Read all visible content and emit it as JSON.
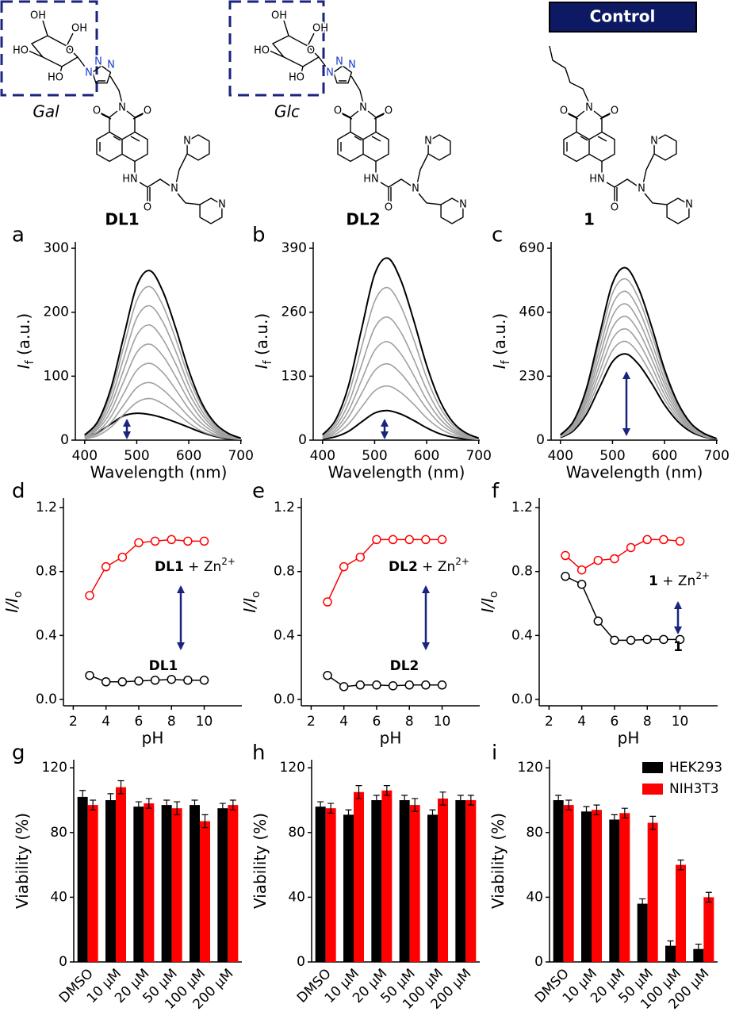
{
  "control_label": "Control",
  "structures": [
    {
      "name": "DL1",
      "tag": "Gal",
      "atoms": [
        "OH",
        "OH",
        "HO",
        "O",
        "HO",
        "N",
        "N",
        "N",
        "O",
        "N",
        "O",
        "HN",
        "O",
        "N",
        "N",
        "N"
      ]
    },
    {
      "name": "DL2",
      "tag": "Glc",
      "atoms": [
        "OH",
        "OH",
        "HO",
        "O",
        "HO",
        "N",
        "N",
        "N",
        "O",
        "N",
        "O",
        "HN",
        "O",
        "N",
        "N",
        "N"
      ]
    },
    {
      "name": "1",
      "atoms": [
        "O",
        "N",
        "O",
        "HN",
        "O",
        "N",
        "N",
        "N"
      ]
    }
  ],
  "chart_data": [
    {
      "type": "line",
      "label": "a",
      "xlabel": "Wavelength (nm)",
      "ylabel": {
        "main": "I",
        "sub": "f",
        "rest": " (a.u.)"
      },
      "x": [
        400,
        425,
        450,
        475,
        500,
        525,
        550,
        575,
        600,
        625,
        650,
        675,
        700
      ],
      "xlim": [
        382,
        702
      ],
      "xticks": [
        400,
        500,
        600,
        700
      ],
      "ylim": [
        0,
        310
      ],
      "yticks": [
        0,
        100,
        200,
        300
      ],
      "series": [
        {
          "color": "#000000",
          "values": [
            5,
            12,
            25,
            38,
            42,
            40,
            35,
            28,
            20,
            12,
            6,
            2,
            1
          ]
        },
        {
          "color": "#a0a0a0",
          "values": [
            2,
            7,
            20,
            40,
            59,
            65,
            57,
            43,
            27,
            14,
            7,
            3,
            1
          ]
        },
        {
          "color": "#a0a0a0",
          "values": [
            3,
            10,
            27,
            55,
            82,
            90,
            79,
            59,
            37,
            20,
            9,
            4,
            1
          ]
        },
        {
          "color": "#a0a0a0",
          "values": [
            4,
            13,
            36,
            73,
            109,
            120,
            106,
            79,
            49,
            26,
            12,
            5,
            1
          ]
        },
        {
          "color": "#a0a0a0",
          "values": [
            5,
            17,
            45,
            92,
            137,
            150,
            132,
            99,
            62,
            33,
            15,
            6,
            2
          ]
        },
        {
          "color": "#a0a0a0",
          "values": [
            5,
            20,
            54,
            110,
            164,
            180,
            158,
            119,
            74,
            40,
            18,
            7,
            2
          ]
        },
        {
          "color": "#a0a0a0",
          "values": [
            6,
            23,
            63,
            128,
            191,
            210,
            185,
            139,
            86,
            46,
            21,
            8,
            2
          ]
        },
        {
          "color": "#a0a0a0",
          "values": [
            7,
            26,
            72,
            146,
            218,
            240,
            211,
            158,
            98,
            53,
            24,
            10,
            2
          ]
        },
        {
          "color": "#000000",
          "values": [
            8,
            29,
            80,
            162,
            241,
            265,
            233,
            175,
            109,
            58,
            27,
            11,
            3
          ]
        }
      ]
    },
    {
      "type": "line",
      "label": "b",
      "xlabel": "Wavelength (nm)",
      "ylabel": {
        "main": "I",
        "sub": "f",
        "rest": " (a.u.)"
      },
      "x": [
        400,
        425,
        450,
        475,
        500,
        525,
        550,
        575,
        600,
        625,
        650,
        675,
        700
      ],
      "xlim": [
        382,
        702
      ],
      "xticks": [
        400,
        500,
        600,
        700
      ],
      "ylim": [
        0,
        403
      ],
      "yticks": [
        0,
        130,
        260,
        390
      ],
      "series": [
        {
          "color": "#000000",
          "values": [
            2,
            7,
            18,
            37,
            55,
            60,
            53,
            40,
            25,
            13,
            6,
            2,
            1
          ]
        },
        {
          "color": "#a0a0a0",
          "values": [
            3,
            12,
            33,
            67,
            100,
            110,
            97,
            73,
            45,
            24,
            11,
            4,
            1
          ]
        },
        {
          "color": "#a0a0a0",
          "values": [
            5,
            17,
            47,
            95,
            141,
            155,
            136,
            102,
            64,
            34,
            16,
            6,
            2
          ]
        },
        {
          "color": "#a0a0a0",
          "values": [
            6,
            22,
            60,
            122,
            182,
            200,
            176,
            132,
            82,
            44,
            20,
            8,
            2
          ]
        },
        {
          "color": "#a0a0a0",
          "values": [
            8,
            28,
            75,
            153,
            228,
            250,
            220,
            165,
            103,
            55,
            25,
            10,
            3
          ]
        },
        {
          "color": "#a0a0a0",
          "values": [
            9,
            34,
            93,
            189,
            282,
            310,
            273,
            205,
            127,
            68,
            31,
            12,
            3
          ]
        },
        {
          "color": "#000000",
          "values": [
            11,
            41,
            111,
            226,
            337,
            370,
            326,
            244,
            152,
            81,
            37,
            15,
            4
          ]
        }
      ]
    },
    {
      "type": "line",
      "label": "c",
      "xlabel": "Wavelength (nm)",
      "ylabel": {
        "main": "I",
        "sub": "f",
        "rest": " (a.u.)"
      },
      "x": [
        400,
        425,
        450,
        475,
        500,
        525,
        550,
        575,
        600,
        625,
        650,
        675,
        700
      ],
      "xlim": [
        382,
        702
      ],
      "xticks": [
        400,
        500,
        600,
        700
      ],
      "ylim": [
        0,
        713
      ],
      "yticks": [
        0,
        230,
        460,
        690
      ],
      "series": [
        {
          "color": "#000000",
          "values": [
            9,
            34,
            93,
            189,
            282,
            310,
            273,
            205,
            127,
            68,
            31,
            12,
            3
          ]
        },
        {
          "color": "#a0a0a0",
          "values": [
            11,
            39,
            107,
            217,
            323,
            355,
            312,
            234,
            146,
            78,
            36,
            14,
            4
          ]
        },
        {
          "color": "#a0a0a0",
          "values": [
            12,
            44,
            120,
            244,
            364,
            400,
            352,
            264,
            164,
            88,
            40,
            16,
            4
          ]
        },
        {
          "color": "#a0a0a0",
          "values": [
            13,
            49,
            134,
            271,
            405,
            445,
            392,
            294,
            182,
            98,
            45,
            18,
            4
          ]
        },
        {
          "color": "#a0a0a0",
          "values": [
            15,
            54,
            147,
            299,
            446,
            490,
            431,
            323,
            201,
            108,
            49,
            20,
            5
          ]
        },
        {
          "color": "#a0a0a0",
          "values": [
            16,
            59,
            161,
            326,
            487,
            535,
            471,
            353,
            219,
            118,
            54,
            21,
            5
          ]
        },
        {
          "color": "#a0a0a0",
          "values": [
            17,
            64,
            174,
            354,
            528,
            580,
            510,
            383,
            238,
            128,
            58,
            23,
            6
          ]
        },
        {
          "color": "#000000",
          "values": [
            19,
            68,
            186,
            378,
            564,
            620,
            546,
            409,
            254,
            136,
            62,
            25,
            6
          ]
        }
      ]
    },
    {
      "type": "line",
      "markers": true,
      "label": "d",
      "xlabel": "pH",
      "ylabel": {
        "main": "I/I",
        "sub": "o"
      },
      "x": [
        3,
        4,
        5,
        6,
        7,
        8,
        9,
        10
      ],
      "xlim": [
        1.4,
        12.3
      ],
      "xticks": [
        2,
        4,
        6,
        8,
        10
      ],
      "ylim": [
        -0.04,
        1.26
      ],
      "yticks": [
        {
          "value": 0,
          "label": "0.0"
        },
        0.4,
        0.8,
        1.2
      ],
      "series": [
        {
          "color": "#ff0000",
          "values": [
            0.65,
            0.83,
            0.89,
            0.98,
            0.99,
            1.0,
            0.99,
            0.99
          ]
        },
        {
          "color": "#000000",
          "values": [
            0.15,
            0.11,
            0.11,
            0.115,
            0.12,
            0.125,
            0.12,
            0.12
          ]
        }
      ],
      "annotations": [
        {
          "bold": "DL1",
          "text": " + Zn",
          "sup": "2+"
        },
        {
          "bold": "DL1"
        }
      ]
    },
    {
      "type": "line",
      "markers": true,
      "label": "e",
      "xlabel": "pH",
      "ylabel": {
        "main": "I/I",
        "sub": "o"
      },
      "x": [
        3,
        4,
        5,
        6,
        7,
        8,
        9,
        10
      ],
      "xlim": [
        1.4,
        12.3
      ],
      "xticks": [
        2,
        4,
        6,
        8,
        10
      ],
      "ylim": [
        -0.04,
        1.26
      ],
      "yticks": [
        {
          "value": 0,
          "label": "0.0"
        },
        0.4,
        0.8,
        1.2
      ],
      "series": [
        {
          "color": "#ff0000",
          "values": [
            0.61,
            0.83,
            0.89,
            1.0,
            1.0,
            1.0,
            1.0,
            1.0
          ]
        },
        {
          "color": "#000000",
          "values": [
            0.15,
            0.08,
            0.09,
            0.09,
            0.085,
            0.09,
            0.09,
            0.09
          ]
        }
      ],
      "annotations": [
        {
          "bold": "DL2",
          "text": " + Zn",
          "sup": "2+"
        },
        {
          "bold": "DL2"
        }
      ]
    },
    {
      "type": "line",
      "markers": true,
      "label": "f",
      "xlabel": "pH",
      "ylabel": {
        "main": "I/I",
        "sub": "o"
      },
      "x": [
        3,
        4,
        5,
        6,
        7,
        8,
        9,
        10
      ],
      "xlim": [
        1.4,
        12.3
      ],
      "xticks": [
        2,
        4,
        6,
        8,
        10
      ],
      "ylim": [
        -0.04,
        1.26
      ],
      "yticks": [
        {
          "value": 0,
          "label": "0.0"
        },
        0.4,
        0.8,
        1.2
      ],
      "series": [
        {
          "color": "#ff0000",
          "values": [
            0.9,
            0.81,
            0.87,
            0.88,
            0.95,
            1.0,
            1.0,
            0.99
          ]
        },
        {
          "color": "#000000",
          "values": [
            0.77,
            0.72,
            0.49,
            0.37,
            0.37,
            0.375,
            0.375,
            0.375
          ]
        }
      ],
      "annotations": [
        {
          "bold": "1",
          "text": " + Zn",
          "sup": "2+"
        },
        {
          "bold": "1"
        }
      ]
    },
    {
      "type": "bar",
      "label": "g",
      "ylabel": {
        "main": "Viability (%)"
      },
      "categories": [
        "DMSO",
        "10 μM",
        "20 μM",
        "50 μM",
        "100 μM",
        "200 μM"
      ],
      "ylim": [
        0,
        125
      ],
      "yticks": [
        0,
        40,
        80,
        120
      ],
      "series": [
        {
          "color": "#000000",
          "values": [
            102,
            100,
            96,
            97,
            97,
            95
          ],
          "errors": [
            4,
            4,
            3,
            3,
            3,
            3
          ]
        },
        {
          "color": "#ff0000",
          "values": [
            97,
            108,
            98,
            95,
            87,
            97
          ],
          "errors": [
            3,
            4,
            3,
            4,
            4,
            3
          ]
        }
      ]
    },
    {
      "type": "bar",
      "label": "h",
      "ylabel": {
        "main": "Viability (%)"
      },
      "categories": [
        "DMSO",
        "10 μM",
        "20 μM",
        "50 μM",
        "100 μM",
        "200 μM"
      ],
      "ylim": [
        0,
        125
      ],
      "yticks": [
        0,
        40,
        80,
        120
      ],
      "series": [
        {
          "color": "#000000",
          "values": [
            96,
            91,
            100,
            100,
            91,
            100
          ],
          "errors": [
            3,
            3,
            3,
            3,
            3,
            3
          ]
        },
        {
          "color": "#ff0000",
          "values": [
            95,
            105,
            106,
            97,
            101,
            100
          ],
          "errors": [
            3,
            4,
            3,
            4,
            4,
            3
          ]
        }
      ]
    },
    {
      "type": "bar",
      "label": "i",
      "ylabel": {
        "main": "Viability (%)"
      },
      "categories": [
        "DMSO",
        "10 μM",
        "20 μM",
        "50 μM",
        "100 μM",
        "200 μM"
      ],
      "ylim": [
        0,
        125
      ],
      "yticks": [
        0,
        40,
        80,
        120
      ],
      "legend": "upper right",
      "series": [
        {
          "name": "HEK293",
          "color": "#000000",
          "values": [
            100,
            93,
            88,
            36,
            10,
            8
          ],
          "errors": [
            3,
            3,
            3,
            3,
            3,
            3
          ]
        },
        {
          "name": "NIH3T3",
          "color": "#ff0000",
          "values": [
            97,
            94,
            92,
            86,
            60,
            40
          ],
          "errors": [
            3,
            3,
            3,
            4,
            3,
            3
          ]
        }
      ]
    }
  ]
}
